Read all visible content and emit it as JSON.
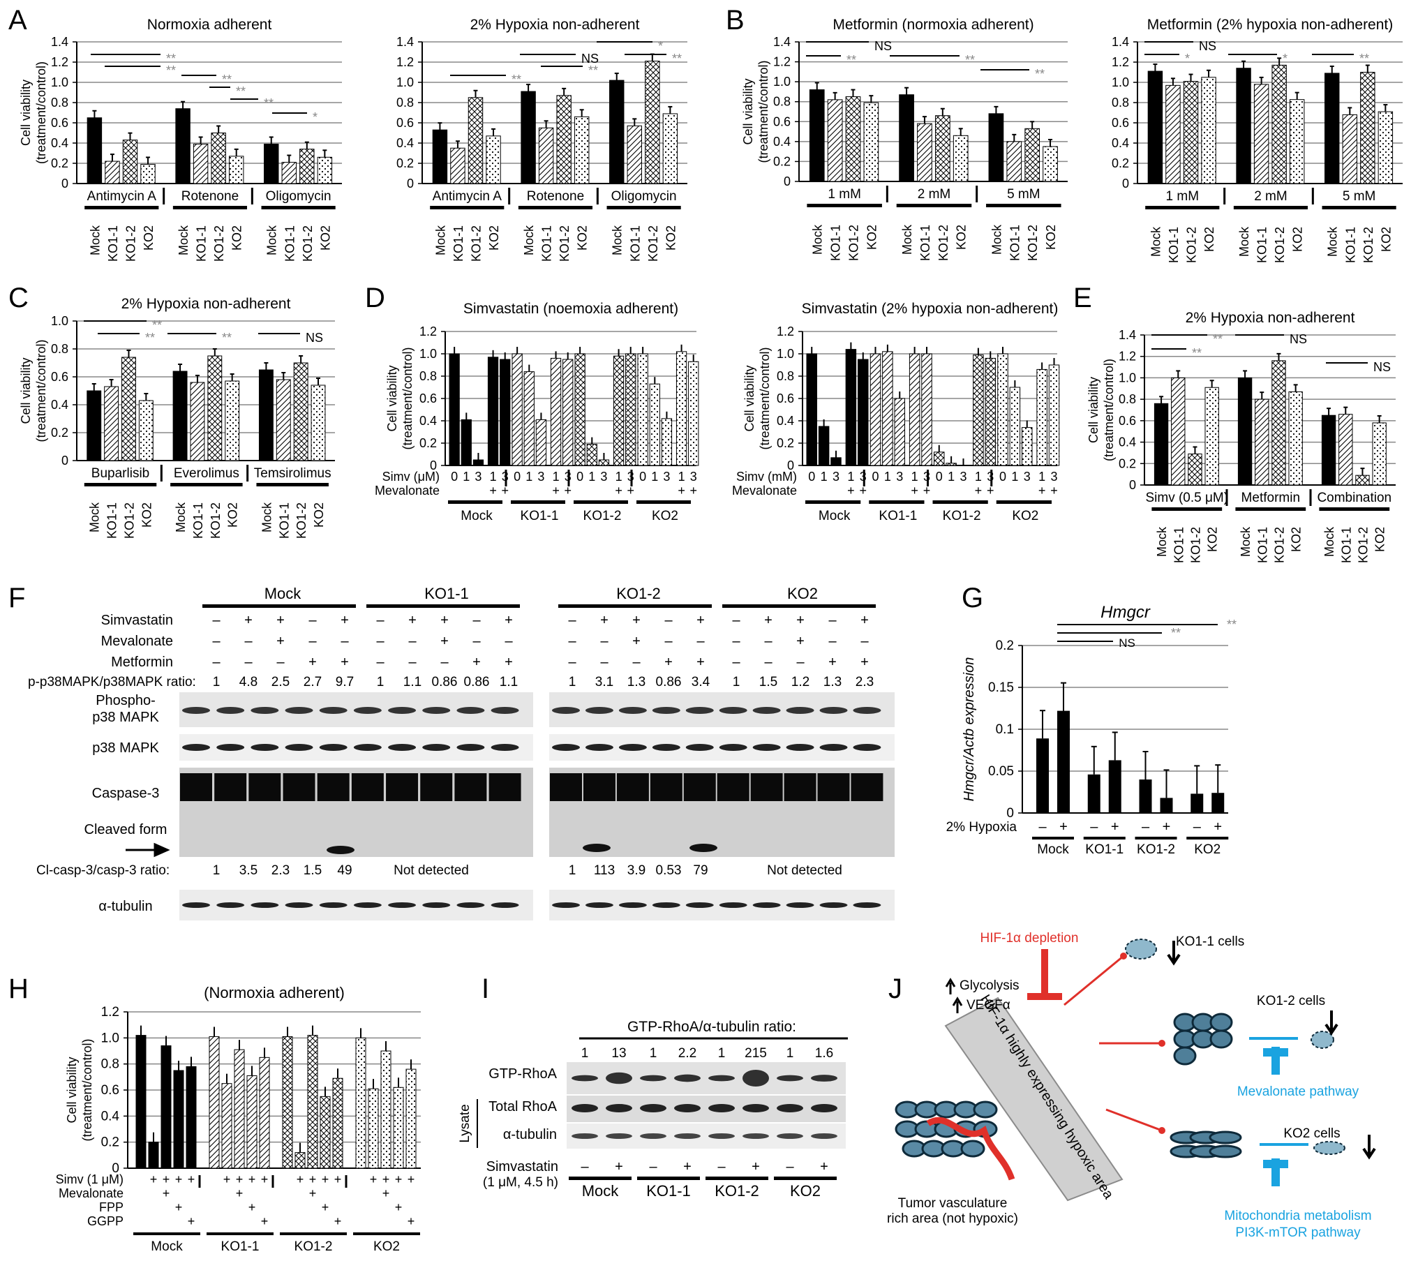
{
  "panel_letters": [
    "A",
    "B",
    "C",
    "D",
    "E",
    "F",
    "G",
    "H",
    "I",
    "J"
  ],
  "common": {
    "ylabel_line1": "Cell viability",
    "ylabel_line2": "(treatment/control)",
    "groups4": [
      "Mock",
      "KO1-1",
      "KO1-2",
      "KO2"
    ],
    "sig2": "**",
    "sig1": "*",
    "ns": "NS"
  },
  "colors": {
    "mock": "#000000",
    "line": "#555555",
    "sig": "#888888",
    "red": "#e0302a",
    "cyan": "#1aa3e0"
  },
  "chart_data": [
    {
      "panel": "A",
      "type": "bar",
      "title": "Normoxia adherent",
      "ylim": [
        0,
        1.4
      ],
      "ticks": [
        "0",
        "0.2",
        "0.4",
        "0.6",
        "0.8",
        "1.0",
        "1.2",
        "1.4"
      ],
      "treatments": [
        "Antimycin A",
        "Rotenone",
        "Oligomycin"
      ],
      "series": [
        {
          "name": "Mock",
          "values": [
            0.65,
            0.74,
            0.39
          ]
        },
        {
          "name": "KO1-1",
          "values": [
            0.22,
            0.39,
            0.21
          ]
        },
        {
          "name": "KO1-2",
          "values": [
            0.43,
            0.5,
            0.34
          ]
        },
        {
          "name": "KO2",
          "values": [
            0.19,
            0.27,
            0.26
          ]
        }
      ]
    },
    {
      "panel": "A",
      "type": "bar",
      "title": "2% Hypoxia non-adherent",
      "ylim": [
        0,
        1.4
      ],
      "ticks": [
        "0",
        "0.2",
        "0.4",
        "0.6",
        "0.8",
        "1.0",
        "1.2",
        "1.4"
      ],
      "treatments": [
        "Antimycin A",
        "Rotenone",
        "Oligomycin"
      ],
      "series": [
        {
          "name": "Mock",
          "values": [
            0.53,
            0.91,
            1.02
          ]
        },
        {
          "name": "KO1-1",
          "values": [
            0.35,
            0.55,
            0.57
          ]
        },
        {
          "name": "KO1-2",
          "values": [
            0.85,
            0.87,
            1.21
          ]
        },
        {
          "name": "KO2",
          "values": [
            0.47,
            0.66,
            0.69
          ]
        }
      ]
    },
    {
      "panel": "B",
      "type": "bar",
      "title": "Metformin (normoxia adherent)",
      "ylim": [
        0,
        1.4
      ],
      "ticks": [
        "0",
        "0.2",
        "0.4",
        "0.6",
        "0.8",
        "1.0",
        "1.2",
        "1.4"
      ],
      "treatments": [
        "1 mM",
        "2 mM",
        "5 mM"
      ],
      "series": [
        {
          "name": "Mock",
          "values": [
            0.92,
            0.87,
            0.68
          ]
        },
        {
          "name": "KO1-1",
          "values": [
            0.82,
            0.58,
            0.4
          ]
        },
        {
          "name": "KO1-2",
          "values": [
            0.85,
            0.66,
            0.53
          ]
        },
        {
          "name": "KO2",
          "values": [
            0.79,
            0.46,
            0.35
          ]
        }
      ]
    },
    {
      "panel": "B",
      "type": "bar",
      "title": "Metformin (2% hypoxia non-adherent)",
      "ylim": [
        0,
        1.4
      ],
      "ticks": [
        "0",
        "0.2",
        "0.4",
        "0.6",
        "0.8",
        "1.0",
        "1.2",
        "1.4"
      ],
      "treatments": [
        "1 mM",
        "2 mM",
        "5 mM"
      ],
      "series": [
        {
          "name": "Mock",
          "values": [
            1.11,
            1.14,
            1.09
          ]
        },
        {
          "name": "KO1-1",
          "values": [
            0.97,
            0.98,
            0.68
          ]
        },
        {
          "name": "KO1-2",
          "values": [
            1.01,
            1.17,
            1.1
          ]
        },
        {
          "name": "KO2",
          "values": [
            1.05,
            0.83,
            0.71
          ]
        }
      ]
    },
    {
      "panel": "C",
      "type": "bar",
      "title": "2% Hypoxia non-adherent",
      "ylim": [
        0,
        1.0
      ],
      "ticks": [
        "0",
        "0.2",
        "0.4",
        "0.6",
        "0.8",
        "1.0"
      ],
      "treatments": [
        "Buparlisib",
        "Everolimus",
        "Temsirolimus"
      ],
      "series": [
        {
          "name": "Mock",
          "values": [
            0.5,
            0.64,
            0.65
          ]
        },
        {
          "name": "KO1-1",
          "values": [
            0.53,
            0.56,
            0.58
          ]
        },
        {
          "name": "KO1-2",
          "values": [
            0.74,
            0.75,
            0.7
          ]
        },
        {
          "name": "KO2",
          "values": [
            0.43,
            0.57,
            0.54
          ]
        }
      ]
    },
    {
      "panel": "D",
      "type": "bar",
      "title": "Simvastatin (noemoxia adherent)",
      "ylim": [
        0,
        1.2
      ],
      "ticks": [
        "0",
        "0.2",
        "0.4",
        "0.6",
        "0.8",
        "1.0",
        "1.2"
      ],
      "simv_label": "Simv (μM)",
      "doses": [
        "0",
        "1",
        "3",
        "1",
        "3"
      ],
      "mevalonate_label": "Mevalonate",
      "plus": "+",
      "series": [
        {
          "name": "Mock",
          "values": [
            1.0,
            0.41,
            0.05,
            0.97,
            0.95
          ]
        },
        {
          "name": "KO1-1",
          "values": [
            1.0,
            0.84,
            0.41,
            0.96,
            0.95
          ]
        },
        {
          "name": "KO1-2",
          "values": [
            1.0,
            0.19,
            0.05,
            0.98,
            1.0
          ]
        },
        {
          "name": "KO2",
          "values": [
            1.0,
            0.73,
            0.42,
            1.02,
            0.93
          ]
        }
      ]
    },
    {
      "panel": "D",
      "type": "bar",
      "title": "Simvastatin (2% hypoxia non-adherent)",
      "ylim": [
        0,
        1.2
      ],
      "ticks": [
        "0",
        "0.2",
        "0.4",
        "0.6",
        "0.8",
        "1.0",
        "1.2"
      ],
      "simv_label": "Simv (mM)",
      "doses": [
        "0",
        "1",
        "3",
        "1",
        "3"
      ],
      "mevalonate_label": "Mevalonate",
      "plus": "+",
      "series": [
        {
          "name": "Mock",
          "values": [
            1.0,
            0.35,
            0.07,
            1.04,
            0.95
          ]
        },
        {
          "name": "KO1-1",
          "values": [
            1.0,
            1.02,
            0.6,
            1.0,
            1.0
          ]
        },
        {
          "name": "KO1-2",
          "values": [
            0.12,
            0.02,
            0.0,
            0.99,
            0.96
          ]
        },
        {
          "name": "KO2",
          "values": [
            1.0,
            0.7,
            0.34,
            0.86,
            0.9
          ]
        }
      ]
    },
    {
      "panel": "E",
      "type": "bar",
      "title": "2% Hypoxia non-adherent",
      "ylim": [
        0,
        1.4
      ],
      "ticks": [
        "0",
        "0.2",
        "0.4",
        "0.6",
        "0.8",
        "1.0",
        "1.2",
        "1.4"
      ],
      "treatments": [
        "Simv (0.5 μM)",
        "Metformin",
        "Combination"
      ],
      "series": [
        {
          "name": "Mock",
          "values": [
            0.76,
            1.0,
            0.65
          ]
        },
        {
          "name": "KO1-1",
          "values": [
            1.0,
            0.8,
            0.66
          ]
        },
        {
          "name": "KO1-2",
          "values": [
            0.29,
            1.16,
            0.09
          ]
        },
        {
          "name": "KO2",
          "values": [
            0.91,
            0.87,
            0.58
          ]
        }
      ]
    },
    {
      "panel": "G",
      "type": "bar",
      "title": "Hmgcr",
      "ylabel": "Hmgcr/Actb expression",
      "ylim": [
        0,
        0.2
      ],
      "ticks": [
        "0",
        "0.05",
        "0.1",
        "0.15",
        "0.2"
      ],
      "condition_label": "2% Hypoxia",
      "minus": "–",
      "plus": "+",
      "groups": [
        "Mock",
        "KO1-1",
        "KO1-2",
        "KO2"
      ],
      "series": [
        {
          "name": "–",
          "values": [
            0.089,
            0.046,
            0.04,
            0.023
          ]
        },
        {
          "name": "+",
          "values": [
            0.122,
            0.063,
            0.018,
            0.024
          ]
        }
      ]
    },
    {
      "panel": "H",
      "type": "bar",
      "title": "(Normoxia adherent)",
      "ylim": [
        0,
        1.2
      ],
      "ticks": [
        "0",
        "0.2",
        "0.4",
        "0.6",
        "0.8",
        "1.0",
        "1.2"
      ],
      "row_labels": [
        "Simv (1 μM)",
        "Mevalonate",
        "FPP",
        "GGPP"
      ],
      "series": [
        {
          "name": "Mock",
          "values": [
            1.02,
            0.2,
            0.94,
            0.75,
            0.78
          ]
        },
        {
          "name": "KO1-1",
          "values": [
            1.01,
            0.65,
            0.91,
            0.71,
            0.85
          ]
        },
        {
          "name": "KO1-2",
          "values": [
            1.01,
            0.12,
            1.02,
            0.55,
            0.69
          ]
        },
        {
          "name": "KO2",
          "values": [
            1.0,
            0.61,
            0.9,
            0.62,
            0.76
          ]
        }
      ]
    }
  ],
  "blot_F": {
    "groups": [
      "Mock",
      "KO1-1",
      "KO1-2",
      "KO2"
    ],
    "row_labels": [
      "Simvastatin",
      "Mevalonate",
      "Metformin"
    ],
    "simv": [
      "–",
      "+",
      "+",
      "–",
      "+"
    ],
    "meva": [
      "–",
      "–",
      "+",
      "–",
      "–"
    ],
    "metf": [
      "–",
      "–",
      "–",
      "+",
      "+"
    ],
    "ratio_label": "p-p38MAPK/p38MAPK ratio:",
    "ratios": [
      [
        "1",
        "4.8",
        "2.5",
        "2.7",
        "9.7"
      ],
      [
        "1",
        "1.1",
        "0.86",
        "0.86",
        "1.1"
      ],
      [
        "1",
        "3.1",
        "1.3",
        "0.86",
        "3.4"
      ],
      [
        "1",
        "1.5",
        "1.2",
        "1.3",
        "2.3"
      ]
    ],
    "band_labels": [
      "Phospho-",
      "p38 MAPK",
      "p38 MAPK",
      "Caspase-3",
      "Cleaved form",
      "α-tubulin"
    ],
    "cl_label": "Cl-casp-3/casp-3 ratio:",
    "cl_mock": [
      "1",
      "3.5",
      "2.3",
      "1.5",
      "49"
    ],
    "cl_ko12": [
      "1",
      "113",
      "3.9",
      "0.53",
      "79"
    ],
    "not_detected": "Not detected"
  },
  "blot_I": {
    "header": "GTP-RhoA/α-tubulin ratio:",
    "ratios": [
      "1",
      "13",
      "1",
      "2.2",
      "1",
      "215",
      "1",
      "1.6"
    ],
    "band_labels": [
      "GTP-RhoA",
      "Total RhoA",
      "α-tubulin"
    ],
    "lysate": "Lysate",
    "simv_label": "Simvastatin",
    "simv_sub": "(1 μM, 4.5 h)",
    "signs": [
      "–",
      "+",
      "–",
      "+",
      "–",
      "+",
      "–",
      "+"
    ],
    "groups": [
      "Mock",
      "KO1-1",
      "KO1-2",
      "KO2"
    ]
  },
  "diagram_J": {
    "hif_depletion": "HIF-1α depletion",
    "glycolysis": "Glycolysis",
    "vegf": "VEGFα",
    "band_text": "HIF-1α highly expressing hypoxic area",
    "vasc_line1": "Tumor vasculature",
    "vasc_line2": "rich area (not hypoxic)",
    "ko11": "KO1-1 cells",
    "ko12": "KO1-2 cells",
    "ko2": "KO2 cells",
    "mevalonate_pathway": "Mevalonate pathway",
    "mito_line1": "Mitochondria metabolism",
    "mito_line2": "PI3K-mTOR pathway"
  }
}
